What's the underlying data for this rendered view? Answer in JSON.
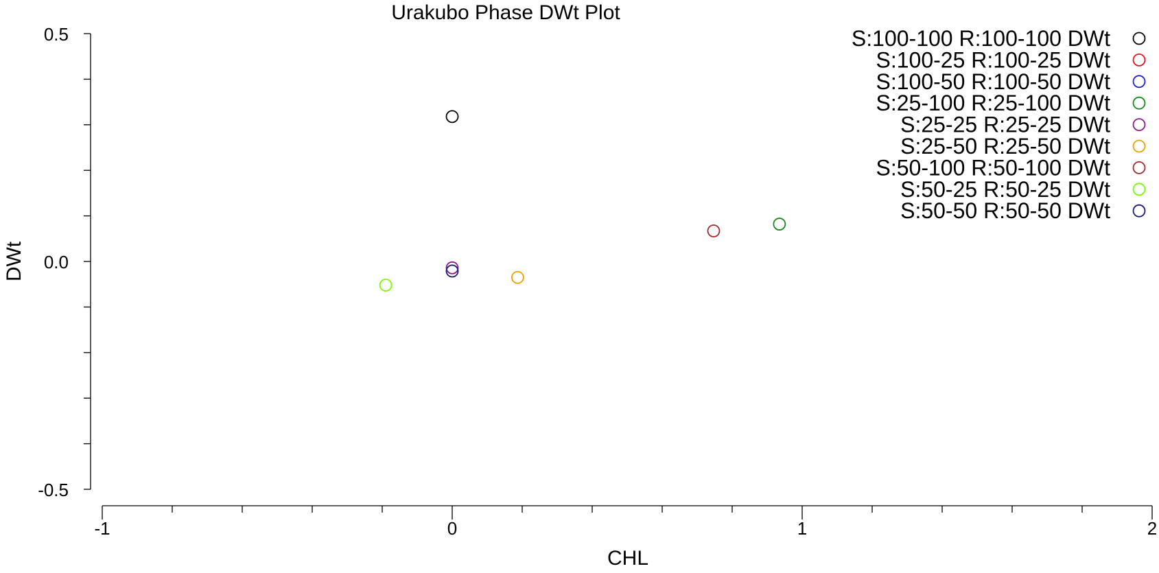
{
  "chart_data": {
    "type": "scatter",
    "title": "Urakubo Phase DWt Plot",
    "xlabel": "CHL",
    "ylabel": "DWt",
    "xlim": [
      -1,
      2
    ],
    "ylim": [
      -0.5,
      0.5
    ],
    "x_ticks": [
      -1,
      0,
      1,
      2
    ],
    "x_tick_labels": [
      "-1",
      "0",
      "1",
      "2"
    ],
    "x_minor_step": 0.2,
    "y_ticks": [
      0.5,
      0.0,
      -0.5
    ],
    "y_tick_labels": [
      "0.5",
      "0.0",
      "-0.5"
    ],
    "y_minor_step": 0.1,
    "grid": false,
    "marker": "open-circle",
    "legend_position": "top-right",
    "series": [
      {
        "name": "S:100-100 R:100-100 DWt",
        "color": "#000000",
        "points": [
          {
            "x": 0.0,
            "y": 0.318
          }
        ]
      },
      {
        "name": "S:100-25 R:100-25 DWt",
        "color": "#e8101a",
        "points": []
      },
      {
        "name": "S:100-50 R:100-50 DWt",
        "color": "#1f1fd6",
        "points": []
      },
      {
        "name": "S:25-100 R:25-100 DWt",
        "color": "#1a8a1a",
        "points": [
          {
            "x": 0.935,
            "y": 0.082
          }
        ]
      },
      {
        "name": "S:25-25 R:25-25 DWt",
        "color": "#8b1a8b",
        "points": [
          {
            "x": 0.0,
            "y": -0.014
          }
        ]
      },
      {
        "name": "S:25-50 R:25-50 DWt",
        "color": "#f0a000",
        "points": [
          {
            "x": 0.187,
            "y": -0.035
          }
        ]
      },
      {
        "name": "S:50-100 R:50-100 DWt",
        "color": "#a52a2a",
        "points": [
          {
            "x": 0.747,
            "y": 0.067
          }
        ]
      },
      {
        "name": "S:50-25 R:50-25 DWt",
        "color": "#7cfc00",
        "points": [
          {
            "x": -0.19,
            "y": -0.052
          }
        ]
      },
      {
        "name": "S:50-50 R:50-50 DWt",
        "color": "#1a1a7a",
        "points": [
          {
            "x": 0.0,
            "y": -0.021
          }
        ]
      }
    ]
  }
}
